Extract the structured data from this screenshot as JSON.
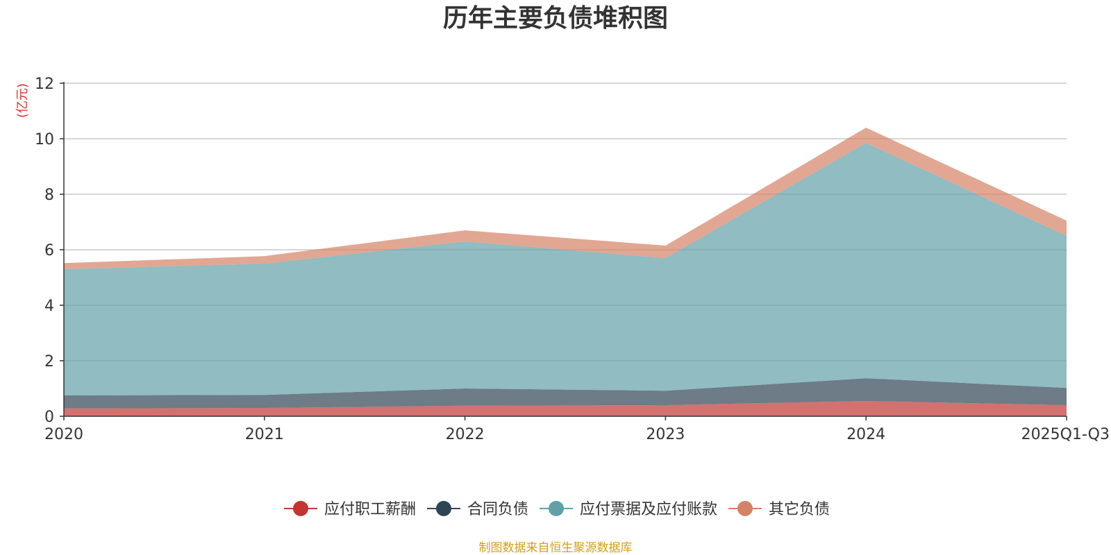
{
  "chart_data": {
    "type": "area",
    "stacked": true,
    "title": "历年主要负债堆积图",
    "y_unit": "(亿元)",
    "x": [
      "2020",
      "2021",
      "2022",
      "2023",
      "2024",
      "2025Q1-Q3"
    ],
    "ylim": [
      0,
      12
    ],
    "yticks": [
      "0",
      "2",
      "4",
      "6",
      "8",
      "10",
      "12"
    ],
    "grid": true,
    "legend_position": "bottom",
    "series": [
      {
        "name": "应付职工薪酬",
        "color": "#c23531",
        "values": [
          0.28,
          0.3,
          0.38,
          0.4,
          0.55,
          0.4
        ]
      },
      {
        "name": "合同负债",
        "color": "#2f4554",
        "values": [
          0.47,
          0.47,
          0.62,
          0.52,
          0.82,
          0.62
        ]
      },
      {
        "name": "应付票据及应付账款",
        "color": "#61a0a8",
        "values": [
          4.55,
          4.73,
          5.3,
          4.78,
          8.48,
          5.48
        ]
      },
      {
        "name": "其它负债",
        "color": "#d48265",
        "values": [
          0.22,
          0.27,
          0.4,
          0.45,
          0.55,
          0.55
        ]
      }
    ]
  },
  "footer": {
    "source": "制图数据来自恒生聚源数据库"
  }
}
